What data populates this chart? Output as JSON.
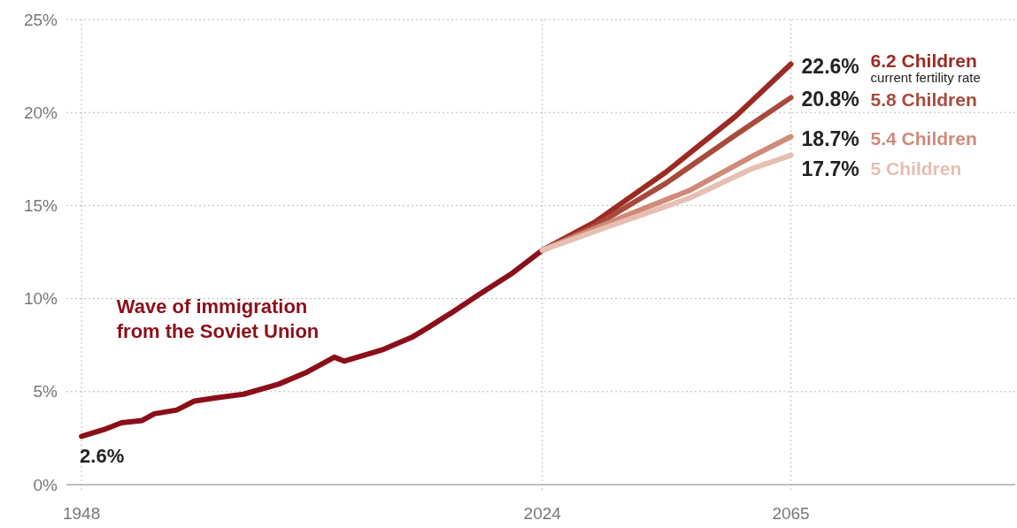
{
  "chart_data": {
    "type": "line",
    "xlim": [
      1945.5,
      2102
    ],
    "xticks": [
      1948,
      2024,
      2065
    ],
    "ylim": [
      0,
      25
    ],
    "yticks": [
      {
        "value": 0,
        "label": "0%"
      },
      {
        "value": 5,
        "label": "5%"
      },
      {
        "value": 10,
        "label": "10%"
      },
      {
        "value": 15,
        "label": "15%"
      },
      {
        "value": 20,
        "label": "20%"
      },
      {
        "value": 25,
        "label": "25%"
      }
    ],
    "grid": true,
    "marker": "none",
    "line_style": "solid",
    "series": [
      {
        "color": "#8b0f1a",
        "x": [
          1948,
          1951.7,
          1954.6,
          1958,
          1960,
          1963.7,
          1966.6,
          1970,
          1974.7,
          1980.5,
          1985.2,
          1989.7,
          1991.3,
          1997.8,
          2002.5,
          2005.1,
          2008.8,
          2013.5,
          2018.8,
          2024
        ],
        "values": [
          2.6,
          2.96,
          3.33,
          3.45,
          3.81,
          4.01,
          4.49,
          4.66,
          4.86,
          5.4,
          6.05,
          6.85,
          6.64,
          7.27,
          7.92,
          8.43,
          9.19,
          10.21,
          11.31,
          12.6
        ],
        "value_labels": [
          "2.6%",
          null,
          null,
          null,
          null,
          null,
          null,
          null,
          null,
          null,
          null,
          null,
          null,
          null,
          null,
          null,
          null,
          null,
          null,
          null
        ]
      },
      {
        "name": "6.2 Children",
        "color": "#9b2a22",
        "x": [
          2024,
          2032.6,
          2044.4,
          2055.9,
          2065
        ],
        "values": [
          12.6,
          14.1,
          16.8,
          19.8,
          22.6
        ],
        "value_labels": [
          null,
          null,
          null,
          null,
          "22.6%"
        ]
      },
      {
        "name": "5.8 Children",
        "color": "#a84a3c",
        "x": [
          2024,
          2032.6,
          2044.4,
          2055.9,
          2065
        ],
        "values": [
          12.6,
          13.9,
          16.2,
          18.8,
          20.8
        ],
        "value_labels": [
          null,
          null,
          null,
          null,
          "20.8%"
        ]
      },
      {
        "name": "5.4 Children",
        "color": "#cf8a78",
        "x": [
          2024,
          2037.9,
          2048.2,
          2058.5,
          2065
        ],
        "values": [
          12.6,
          14.47,
          15.8,
          17.63,
          18.7
        ],
        "value_labels": [
          null,
          null,
          null,
          null,
          "18.7%"
        ]
      },
      {
        "name": "5 Children",
        "color": "#e6bfb2",
        "x": [
          2024,
          2037.9,
          2048.2,
          2058.5,
          2065
        ],
        "values": [
          12.6,
          14.22,
          15.39,
          16.97,
          17.7
        ],
        "value_labels": [
          null,
          null,
          null,
          null,
          "17.7%"
        ]
      }
    ],
    "annotations": [
      {
        "text": "Wave of immigration\nfrom the Soviet Union",
        "x": 1989.7,
        "y": 6.85
      },
      "current fertility rate"
    ]
  }
}
